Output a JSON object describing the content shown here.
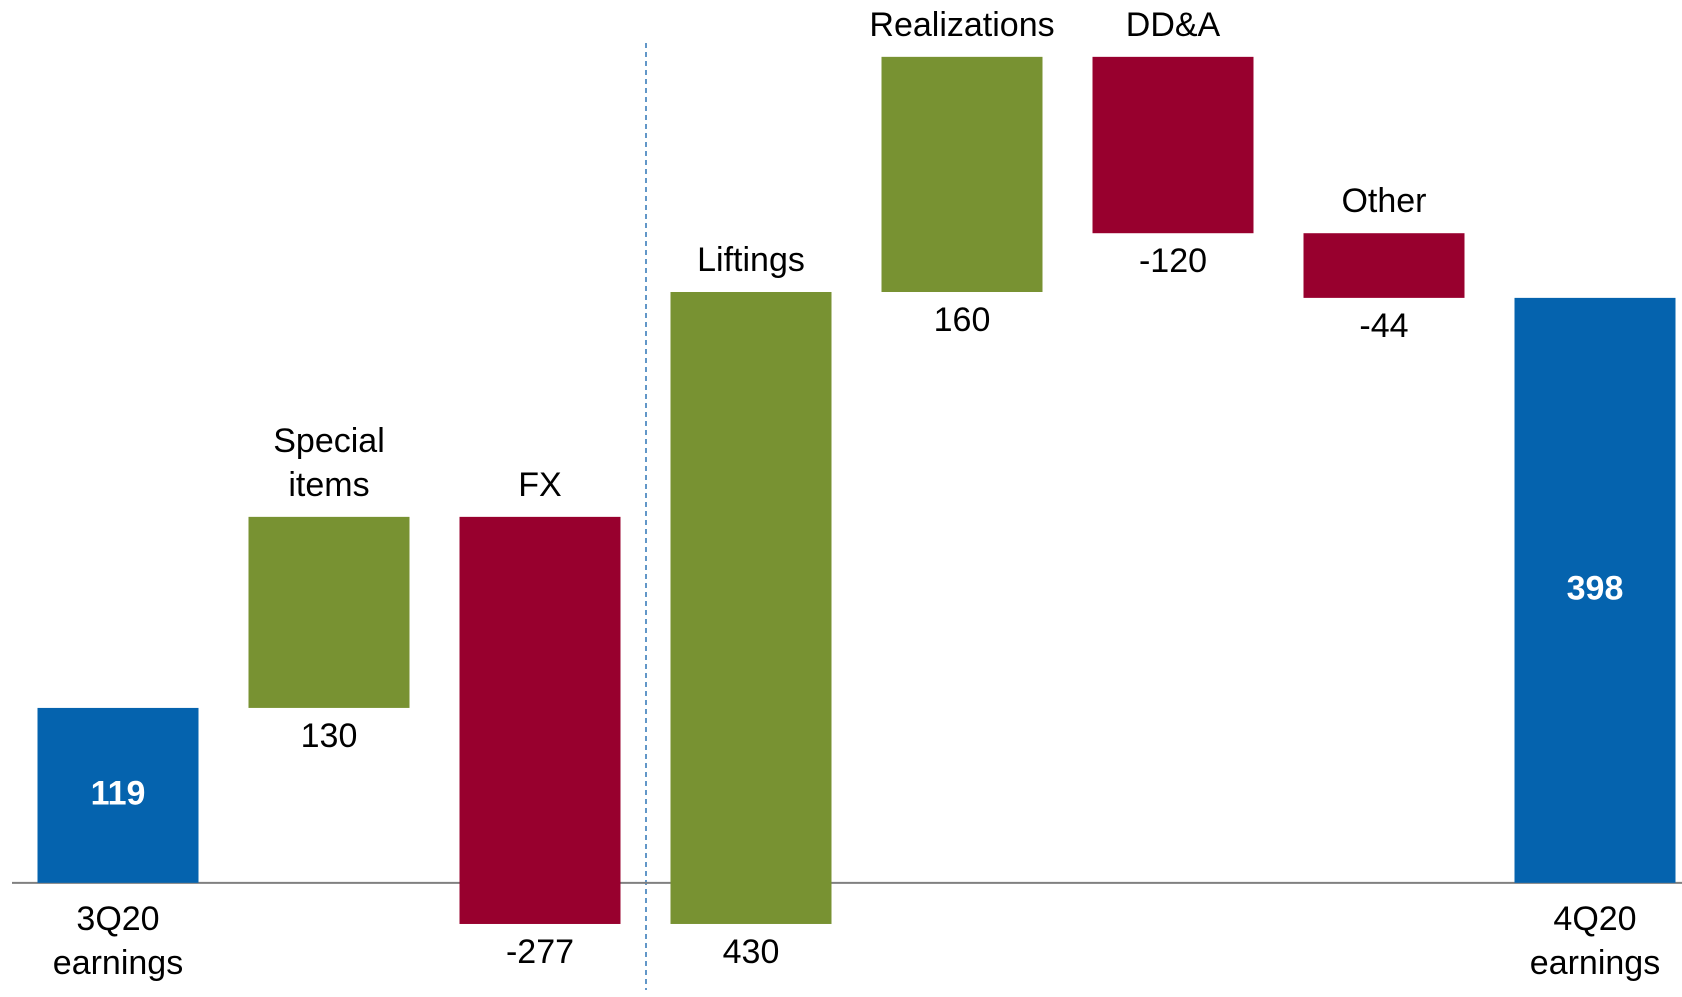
{
  "chart_data": {
    "type": "waterfall",
    "categories": [
      "3Q20 earnings",
      "Special items",
      "FX",
      "Liftings",
      "Realizations",
      "DD&A",
      "Other",
      "4Q20 earnings"
    ],
    "values": [
      119,
      130,
      -277,
      430,
      160,
      -120,
      -44,
      398
    ],
    "measures": [
      "absolute",
      "relative",
      "relative",
      "relative",
      "relative",
      "relative",
      "relative",
      "total"
    ],
    "colors": {
      "absolute": "#0563ae",
      "total": "#0563ae",
      "increase": "#789232",
      "decrease": "#98002e"
    },
    "ylim": [
      -60,
      600
    ]
  }
}
